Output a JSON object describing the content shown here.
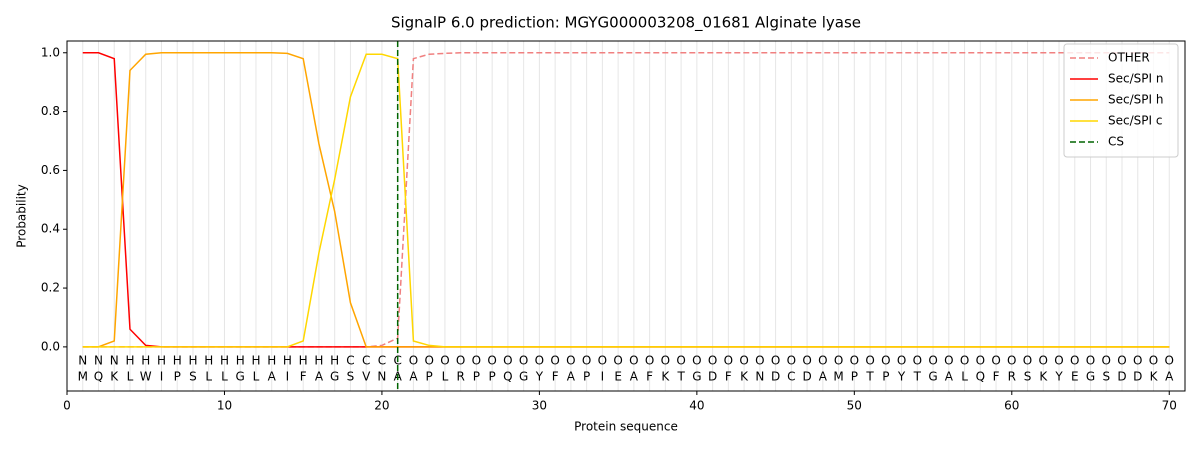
{
  "chart_data": {
    "type": "line",
    "title": "SignalP 6.0 prediction: MGYG000003208_01681 Alginate lyase",
    "x_label": "Protein sequence",
    "y_label": "Probability",
    "x": [
      1,
      2,
      3,
      4,
      5,
      6,
      7,
      8,
      9,
      10,
      11,
      12,
      13,
      14,
      15,
      16,
      17,
      18,
      19,
      20,
      21,
      22,
      23,
      24,
      25,
      26,
      27,
      28,
      29,
      30,
      31,
      32,
      33,
      34,
      35,
      36,
      37,
      38,
      39,
      40,
      41,
      42,
      43,
      44,
      45,
      46,
      47,
      48,
      49,
      50,
      51,
      52,
      53,
      54,
      55,
      56,
      57,
      58,
      59,
      60,
      61,
      62,
      63,
      64,
      65,
      66,
      67,
      68,
      69,
      70
    ],
    "residues": [
      "M",
      "Q",
      "K",
      "L",
      "W",
      "I",
      "P",
      "S",
      "L",
      "L",
      "G",
      "L",
      "A",
      "I",
      "F",
      "A",
      "G",
      "S",
      "V",
      "N",
      "A",
      "A",
      "P",
      "L",
      "R",
      "P",
      "P",
      "Q",
      "G",
      "Y",
      "F",
      "A",
      "P",
      "I",
      "E",
      "A",
      "F",
      "K",
      "T",
      "G",
      "D",
      "F",
      "K",
      "N",
      "D",
      "C",
      "D",
      "A",
      "M",
      "P",
      "T",
      "P",
      "Y",
      "T",
      "G",
      "A",
      "L",
      "Q",
      "F",
      "R",
      "S",
      "K",
      "Y",
      "E",
      "G",
      "S",
      "D",
      "D",
      "K",
      "A"
    ],
    "regions": [
      "N",
      "N",
      "N",
      "H",
      "H",
      "H",
      "H",
      "H",
      "H",
      "H",
      "H",
      "H",
      "H",
      "H",
      "H",
      "H",
      "H",
      "C",
      "C",
      "C",
      "C",
      "O",
      "O",
      "O",
      "O",
      "O",
      "O",
      "O",
      "O",
      "O",
      "O",
      "O",
      "O",
      "O",
      "O",
      "O",
      "O",
      "O",
      "O",
      "O",
      "O",
      "O",
      "O",
      "O",
      "O",
      "O",
      "O",
      "O",
      "O",
      "O",
      "O",
      "O",
      "O",
      "O",
      "O",
      "O",
      "O",
      "O",
      "O",
      "O",
      "O",
      "O",
      "O",
      "O",
      "O",
      "O",
      "O",
      "O",
      "O",
      "O"
    ],
    "region_colors": {
      "N": "#ff0000",
      "H": "#ffa500",
      "C": "#ffd700",
      "O": "#808080"
    },
    "series": [
      {
        "name": "OTHER",
        "color": "#f08080",
        "dash": true,
        "values": [
          0,
          0,
          0,
          0,
          0,
          0,
          0,
          0,
          0,
          0,
          0,
          0,
          0,
          0,
          0,
          0,
          0,
          0,
          0,
          0.005,
          0.03,
          0.98,
          0.995,
          0.998,
          1,
          1,
          1,
          1,
          1,
          1,
          1,
          1,
          1,
          1,
          1,
          1,
          1,
          1,
          1,
          1,
          1,
          1,
          1,
          1,
          1,
          1,
          1,
          1,
          1,
          1,
          1,
          1,
          1,
          1,
          1,
          1,
          1,
          1,
          1,
          1,
          1,
          1,
          1,
          1,
          1,
          1,
          1,
          1,
          1,
          1
        ]
      },
      {
        "name": "Sec/SPI n",
        "color": "#ff0000",
        "dash": false,
        "values": [
          1,
          1,
          0.98,
          0.06,
          0.005,
          0,
          0,
          0,
          0,
          0,
          0,
          0,
          0,
          0,
          0,
          0,
          0,
          0,
          0,
          0,
          0,
          0,
          0,
          0,
          0,
          0,
          0,
          0,
          0,
          0,
          0,
          0,
          0,
          0,
          0,
          0,
          0,
          0,
          0,
          0,
          0,
          0,
          0,
          0,
          0,
          0,
          0,
          0,
          0,
          0,
          0,
          0,
          0,
          0,
          0,
          0,
          0,
          0,
          0,
          0,
          0,
          0,
          0,
          0,
          0,
          0,
          0,
          0,
          0,
          0
        ]
      },
      {
        "name": "Sec/SPI h",
        "color": "#ffa500",
        "dash": false,
        "values": [
          0,
          0,
          0.02,
          0.94,
          0.995,
          1,
          1,
          1,
          1,
          1,
          1,
          1,
          1,
          0.998,
          0.98,
          0.69,
          0.46,
          0.15,
          0,
          0,
          0,
          0,
          0,
          0,
          0,
          0,
          0,
          0,
          0,
          0,
          0,
          0,
          0,
          0,
          0,
          0,
          0,
          0,
          0,
          0,
          0,
          0,
          0,
          0,
          0,
          0,
          0,
          0,
          0,
          0,
          0,
          0,
          0,
          0,
          0,
          0,
          0,
          0,
          0,
          0,
          0,
          0,
          0,
          0,
          0,
          0,
          0,
          0,
          0,
          0
        ]
      },
      {
        "name": "Sec/SPI c",
        "color": "#ffd700",
        "dash": false,
        "values": [
          0,
          0,
          0,
          0,
          0,
          0,
          0,
          0,
          0,
          0,
          0,
          0,
          0,
          0,
          0.02,
          0.32,
          0.57,
          0.85,
          0.995,
          0.995,
          0.98,
          0.02,
          0.005,
          0,
          0,
          0,
          0,
          0,
          0,
          0,
          0,
          0,
          0,
          0,
          0,
          0,
          0,
          0,
          0,
          0,
          0,
          0,
          0,
          0,
          0,
          0,
          0,
          0,
          0,
          0,
          0,
          0,
          0,
          0,
          0,
          0,
          0,
          0,
          0,
          0,
          0,
          0,
          0,
          0,
          0,
          0,
          0,
          0,
          0,
          0
        ]
      }
    ],
    "cs": {
      "name": "CS",
      "color": "#006400",
      "x": 21
    },
    "xlim": [
      0,
      71
    ],
    "ylim": [
      -0.15,
      1.04
    ],
    "xticks": [
      0,
      10,
      20,
      30,
      40,
      50,
      60,
      70
    ],
    "yticks": [
      {
        "value": 0,
        "label": "0.0"
      },
      {
        "value": 0.2,
        "label": "0.2"
      },
      {
        "value": 0.4,
        "label": "0.4"
      },
      {
        "value": 0.6,
        "label": "0.6"
      },
      {
        "value": 0.8,
        "label": "0.8"
      },
      {
        "value": 1,
        "label": "1.0"
      }
    ],
    "legend": "upper right"
  }
}
